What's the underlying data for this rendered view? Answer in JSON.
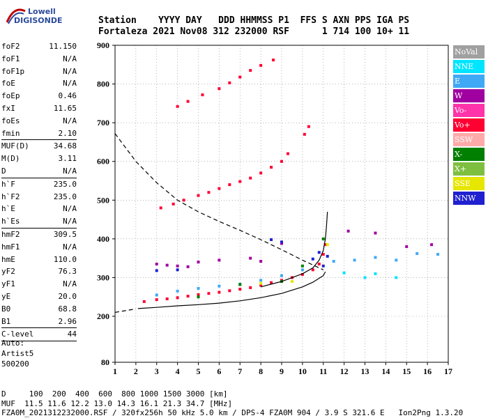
{
  "logo": {
    "line1": "Lowell",
    "line2": "DIGISONDE"
  },
  "header": {
    "labels": [
      "Station",
      "YYYY",
      "DAY",
      "DDD",
      "HHMMSS",
      "P1",
      "FFS",
      "S",
      "AXN",
      "PPS",
      "IGA",
      "PS"
    ],
    "values": [
      "Fortaleza",
      "2021",
      "Nov08",
      "312",
      "232000",
      "RSF",
      "",
      "1",
      "714",
      "100",
      "10+",
      "11"
    ],
    "row1": "Station    YYYY DAY   DDD HHMMSS P1  FFS S AXN PPS IGA PS",
    "row2": "Fortaleza 2021 Nov08 312 232000 RSF      1 714 100 10+ 11"
  },
  "params": [
    {
      "label": "foF2",
      "value": "11.150"
    },
    {
      "label": "foF1",
      "value": "N/A"
    },
    {
      "label": "foF1p",
      "value": "N/A"
    },
    {
      "label": "foE",
      "value": "N/A"
    },
    {
      "label": "foEp",
      "value": "0.46"
    },
    {
      "label": "fxI",
      "value": "11.65"
    },
    {
      "label": "foEs",
      "value": "N/A"
    },
    {
      "label": "fmin",
      "value": "2.10"
    },
    {
      "sep": true
    },
    {
      "label": "MUF(D)",
      "value": "34.68"
    },
    {
      "label": "M(D)",
      "value": "3.11"
    },
    {
      "label": "D",
      "value": "N/A"
    },
    {
      "sep": true
    },
    {
      "label": "h`F",
      "value": "235.0"
    },
    {
      "label": "h`F2",
      "value": "235.0"
    },
    {
      "label": "h`E",
      "value": "N/A"
    },
    {
      "label": "h`Es",
      "value": "N/A"
    },
    {
      "sep": true
    },
    {
      "label": "hmF2",
      "value": "309.5"
    },
    {
      "label": "hmF1",
      "value": "N/A"
    },
    {
      "label": "hmE",
      "value": "110.0"
    },
    {
      "label": "yF2",
      "value": "76.3"
    },
    {
      "label": "yF1",
      "value": "N/A"
    },
    {
      "label": "yE",
      "value": "20.0"
    },
    {
      "label": "B0",
      "value": "68.8"
    },
    {
      "label": "B1",
      "value": "2.96"
    },
    {
      "sep": true
    },
    {
      "label": "C-level",
      "value": "44"
    },
    {
      "sep": true
    }
  ],
  "auto": {
    "line1": "Auto:",
    "line2": "Artist5",
    "line3": "500200"
  },
  "legend": [
    {
      "label": "NoVal",
      "color": "#a0a0a0"
    },
    {
      "label": "NNE",
      "color": "#00e5ff"
    },
    {
      "label": "E",
      "color": "#3fa9f5"
    },
    {
      "label": "W",
      "color": "#a000a0"
    },
    {
      "label": "Vo-",
      "color": "#ff33aa"
    },
    {
      "label": "Vo+",
      "color": "#ff0033"
    },
    {
      "label": "SSW",
      "color": "#ffaaaa"
    },
    {
      "label": "X-",
      "color": "#007f00"
    },
    {
      "label": "X+",
      "color": "#7fbf3f"
    },
    {
      "label": "SSE",
      "color": "#e6e600"
    },
    {
      "label": "NNW",
      "color": "#2020d0"
    }
  ],
  "footer": {
    "line1": "D     100  200  400  600  800 1000 1500 3000 [km]",
    "line2": "MUF  11.5 11.6 12.2 13.0 14.3 16.1 21.3 34.7 [MHz]",
    "line3": "FZA0M_2021312232000.RSF / 320fx256h 50 kHz 5.0 km / DPS-4 FZA0M 904 / 3.9 S 321.6 E   Ion2Png 1.3.20"
  },
  "chart_data": {
    "type": "scatter",
    "xlim": [
      1,
      17
    ],
    "ylim": [
      80,
      900
    ],
    "x_ticks": [
      "1",
      "2",
      "3",
      "4",
      "5",
      "6",
      "7",
      "8",
      "9",
      "10",
      "11",
      "12",
      "13",
      "14",
      "15",
      "16",
      "17"
    ],
    "y_ticks": [
      "80",
      "200",
      "300",
      "400",
      "500",
      "600",
      "700",
      "800",
      "900"
    ],
    "grid": "dotted",
    "series": [
      {
        "name": "Vo+",
        "color": "#ff0033",
        "points": [
          [
            2.4,
            238
          ],
          [
            3.0,
            243
          ],
          [
            3.5,
            245
          ],
          [
            4.0,
            248
          ],
          [
            4.5,
            252
          ],
          [
            5.0,
            256
          ],
          [
            5.5,
            259
          ],
          [
            6.0,
            262
          ],
          [
            6.5,
            266
          ],
          [
            7.0,
            270
          ],
          [
            7.5,
            274
          ],
          [
            8.0,
            280
          ],
          [
            8.5,
            287
          ],
          [
            9.0,
            293
          ],
          [
            9.5,
            300
          ],
          [
            10.0,
            308
          ],
          [
            10.5,
            320
          ],
          [
            10.8,
            335
          ],
          [
            11.0,
            360
          ],
          [
            11.1,
            385
          ]
        ]
      },
      {
        "name": "Vo+",
        "color": "#ff0033",
        "points": [
          [
            3.2,
            480
          ],
          [
            3.8,
            490
          ],
          [
            4.3,
            500
          ],
          [
            5.0,
            512
          ],
          [
            5.5,
            520
          ],
          [
            6.0,
            530
          ],
          [
            6.5,
            540
          ],
          [
            7.0,
            548
          ],
          [
            7.5,
            557
          ],
          [
            8.0,
            570
          ],
          [
            8.5,
            585
          ],
          [
            9.0,
            600
          ],
          [
            9.3,
            620
          ],
          [
            10.1,
            670
          ],
          [
            10.3,
            690
          ]
        ]
      },
      {
        "name": "Vo+",
        "color": "#ff0033",
        "points": [
          [
            4.0,
            742
          ],
          [
            4.5,
            755
          ],
          [
            5.2,
            772
          ],
          [
            6.0,
            788
          ],
          [
            6.5,
            803
          ],
          [
            7.0,
            818
          ],
          [
            7.5,
            835
          ],
          [
            8.0,
            848
          ],
          [
            8.6,
            862
          ]
        ]
      },
      {
        "name": "E",
        "color": "#3fa9f5",
        "points": [
          [
            3.0,
            255
          ],
          [
            4.0,
            265
          ],
          [
            5.0,
            272
          ],
          [
            6.0,
            278
          ],
          [
            7.0,
            283
          ],
          [
            8.0,
            293
          ],
          [
            9.0,
            305
          ],
          [
            10.0,
            320
          ],
          [
            11.5,
            342
          ],
          [
            12.5,
            345
          ],
          [
            13.5,
            352
          ],
          [
            14.5,
            345
          ],
          [
            15.5,
            362
          ],
          [
            16.5,
            360
          ]
        ]
      },
      {
        "name": "W",
        "color": "#a000a0",
        "points": [
          [
            3.0,
            335
          ],
          [
            3.5,
            332
          ],
          [
            4.0,
            330
          ],
          [
            4.5,
            328
          ],
          [
            5.0,
            340
          ],
          [
            6.0,
            345
          ],
          [
            7.5,
            350
          ],
          [
            8.0,
            342
          ],
          [
            9.0,
            388
          ],
          [
            12.2,
            420
          ],
          [
            13.5,
            415
          ],
          [
            15.0,
            380
          ],
          [
            16.2,
            385
          ]
        ]
      },
      {
        "name": "NNW",
        "color": "#2020d0",
        "points": [
          [
            3.0,
            318
          ],
          [
            4.0,
            320
          ],
          [
            8.5,
            398
          ],
          [
            9.0,
            392
          ],
          [
            10.5,
            348
          ],
          [
            10.8,
            365
          ],
          [
            11.0,
            330
          ],
          [
            11.2,
            355
          ]
        ]
      },
      {
        "name": "NNE",
        "color": "#00e5ff",
        "points": [
          [
            12.0,
            312
          ],
          [
            13.0,
            300
          ],
          [
            13.5,
            310
          ],
          [
            14.5,
            300
          ]
        ]
      },
      {
        "name": "X-",
        "color": "#007f00",
        "points": [
          [
            5.0,
            250
          ],
          [
            7.0,
            282
          ],
          [
            9.0,
            290
          ],
          [
            10.0,
            330
          ],
          [
            11.0,
            400
          ]
        ]
      },
      {
        "name": "SSE",
        "color": "#e6e600",
        "points": [
          [
            8.0,
            285
          ],
          [
            9.5,
            290
          ],
          [
            11.2,
            385
          ]
        ]
      }
    ],
    "lines": [
      {
        "style": "solid",
        "points": [
          [
            2.1,
            220
          ],
          [
            3,
            223
          ],
          [
            4,
            227
          ],
          [
            5,
            230
          ],
          [
            6,
            234
          ],
          [
            7,
            240
          ],
          [
            8,
            248
          ],
          [
            9,
            259
          ],
          [
            10,
            276
          ],
          [
            10.5,
            288
          ],
          [
            11,
            305
          ],
          [
            11.1,
            315
          ]
        ]
      },
      {
        "style": "solid",
        "points": [
          [
            8,
            276
          ],
          [
            9,
            290
          ],
          [
            10,
            310
          ],
          [
            10.5,
            325
          ],
          [
            10.8,
            345
          ],
          [
            11.0,
            370
          ],
          [
            11.1,
            400
          ],
          [
            11.15,
            430
          ],
          [
            11.2,
            470
          ]
        ]
      },
      {
        "style": "dashed",
        "points": [
          [
            1.0,
            672
          ],
          [
            2,
            600
          ],
          [
            3,
            545
          ],
          [
            4,
            500
          ],
          [
            5,
            470
          ],
          [
            6,
            445
          ],
          [
            7,
            422
          ],
          [
            8,
            398
          ],
          [
            9,
            372
          ],
          [
            10,
            345
          ],
          [
            11,
            320
          ]
        ]
      },
      {
        "style": "dashed",
        "points": [
          [
            1.0,
            210
          ],
          [
            2,
            219
          ]
        ]
      }
    ]
  }
}
